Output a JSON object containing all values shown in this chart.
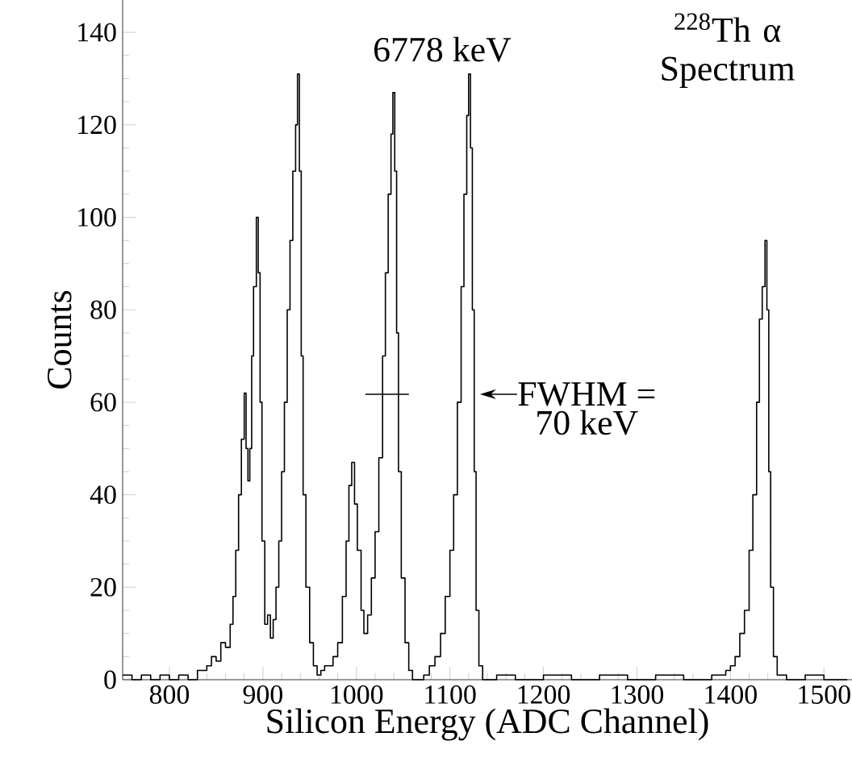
{
  "chart_data": {
    "type": "step",
    "title": "$^{228}$Th α Spectrum",
    "xlabel": "Silicon Energy (ADC Channel)",
    "ylabel": "Counts",
    "annotations": [
      {
        "text": "6778 keV",
        "x": 1120,
        "y": 131
      },
      "FWHM =",
      "70 keV"
    ],
    "xlim": [
      750,
      1530
    ],
    "ylim": [
      0,
      147
    ],
    "xticks": [
      800,
      900,
      1000,
      1100,
      1200,
      1300,
      1400,
      1500
    ],
    "yticks": [
      0,
      20,
      40,
      60,
      80,
      100,
      120,
      140
    ],
    "grid": false,
    "marker": "none",
    "line_style": "solid",
    "series": [
      {
        "color": "#000000",
        "x": [
          750,
          760,
          770,
          780,
          790,
          800,
          810,
          820,
          830,
          840,
          845,
          850,
          855,
          860,
          865,
          868,
          871,
          874,
          877,
          880,
          882,
          884,
          886,
          888,
          890,
          893,
          895,
          897,
          899,
          902,
          905,
          908,
          911,
          914,
          917,
          920,
          923,
          926,
          929,
          932,
          935,
          937,
          939,
          941,
          943,
          946,
          950,
          954,
          958,
          962,
          966,
          970,
          975,
          980,
          985,
          989,
          992,
          995,
          998,
          1001,
          1005,
          1008,
          1012,
          1016,
          1020,
          1024,
          1028,
          1031,
          1034,
          1037,
          1039,
          1041,
          1043,
          1045,
          1048,
          1052,
          1056,
          1060,
          1066,
          1072,
          1078,
          1084,
          1090,
          1095,
          1100,
          1104,
          1108,
          1112,
          1115,
          1118,
          1120,
          1122,
          1124,
          1126,
          1128,
          1131,
          1135,
          1150,
          1170,
          1200,
          1230,
          1260,
          1290,
          1320,
          1350,
          1380,
          1395,
          1400,
          1405,
          1410,
          1415,
          1420,
          1424,
          1428,
          1431,
          1434,
          1437,
          1439,
          1441,
          1443,
          1446,
          1450,
          1460,
          1480,
          1500,
          1525
        ],
        "values": [
          1,
          0,
          1,
          0,
          1,
          0,
          1,
          0,
          2,
          3,
          5,
          4,
          8,
          7,
          12,
          18,
          28,
          40,
          52,
          62,
          50,
          43,
          50,
          70,
          85,
          100,
          88,
          60,
          30,
          12,
          14,
          9,
          13,
          20,
          30,
          45,
          60,
          80,
          95,
          110,
          120,
          131,
          110,
          70,
          40,
          20,
          8,
          3,
          1,
          2,
          3,
          3,
          5,
          8,
          18,
          30,
          42,
          47,
          38,
          28,
          15,
          10,
          14,
          22,
          32,
          48,
          70,
          88,
          105,
          118,
          127,
          110,
          75,
          45,
          22,
          8,
          2,
          0,
          0,
          1,
          3,
          5,
          10,
          18,
          28,
          40,
          60,
          85,
          105,
          122,
          131,
          115,
          80,
          45,
          15,
          3,
          0,
          1,
          0,
          1,
          0,
          1,
          0,
          1,
          0,
          1,
          2,
          3,
          5,
          10,
          15,
          28,
          40,
          60,
          78,
          85,
          95,
          80,
          45,
          20,
          5,
          1,
          0,
          1,
          0,
          0
        ]
      }
    ]
  }
}
